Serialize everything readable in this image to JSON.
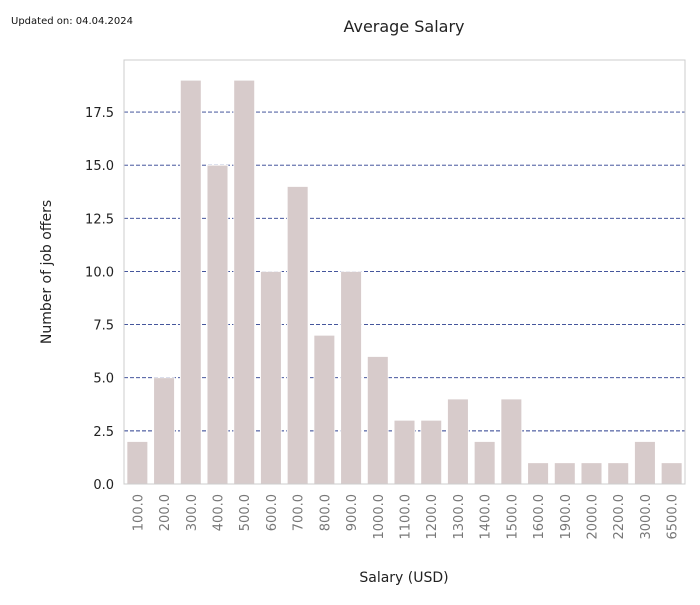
{
  "updated_label": "Updated on: 04.04.2024",
  "chart_data": {
    "type": "bar",
    "title": "Average Salary",
    "xlabel": "Salary (USD)",
    "ylabel": "Number of job offers",
    "categories": [
      "100.0",
      "200.0",
      "300.0",
      "400.0",
      "500.0",
      "600.0",
      "700.0",
      "800.0",
      "900.0",
      "1000.0",
      "1100.0",
      "1200.0",
      "1300.0",
      "1400.0",
      "1500.0",
      "1600.0",
      "1900.0",
      "2000.0",
      "2200.0",
      "3000.0",
      "6500.0"
    ],
    "values": [
      2,
      5,
      19,
      15,
      19,
      10,
      14,
      7,
      10,
      6,
      3,
      3,
      4,
      2,
      4,
      1,
      1,
      1,
      1,
      2,
      1
    ],
    "ylim": [
      0,
      19.95
    ],
    "yticks": [
      0.0,
      2.5,
      5.0,
      7.5,
      10.0,
      12.5,
      15.0,
      17.5
    ],
    "grid": true,
    "colors": {
      "bar": "#d7cbcb",
      "grid": "#2b3f8f",
      "tick_label_x": "#777777",
      "tick_label_y": "#222222",
      "frame": "#cccccc"
    }
  }
}
